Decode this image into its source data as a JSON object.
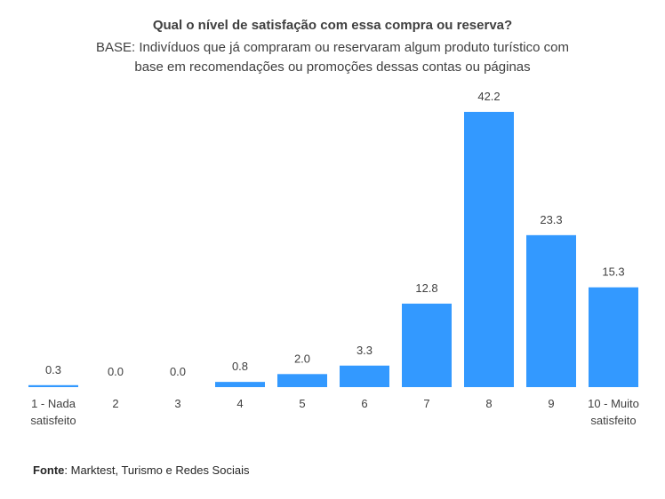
{
  "chart_data": {
    "type": "bar",
    "title": "Qual o nível de satisfação com essa compra ou reserva?",
    "subtitle": "BASE: Indivíduos que já compraram ou reservaram algum produto turístico com base em recomendações ou promoções dessas contas ou páginas",
    "categories": [
      [
        "1 - Nada",
        "satisfeito"
      ],
      [
        "2"
      ],
      [
        "3"
      ],
      [
        "4"
      ],
      [
        "5"
      ],
      [
        "6"
      ],
      [
        "7"
      ],
      [
        "8"
      ],
      [
        "9"
      ],
      [
        "10 - Muito",
        "satisfeito"
      ]
    ],
    "values": [
      0.3,
      0.0,
      0.0,
      0.8,
      2.0,
      3.3,
      12.8,
      42.2,
      23.3,
      15.3
    ],
    "value_labels": [
      "0.3",
      "0.0",
      "0.0",
      "0.8",
      "2.0",
      "3.3",
      "12.8",
      "42.2",
      "23.3",
      "15.3"
    ],
    "xlabel": "",
    "ylabel": "",
    "ylim": [
      0,
      42.2
    ],
    "grid": false,
    "bar_color": "#3399FF"
  },
  "source": {
    "label": "Fonte",
    "text": ": Marktest, Turismo e Redes Sociais"
  }
}
